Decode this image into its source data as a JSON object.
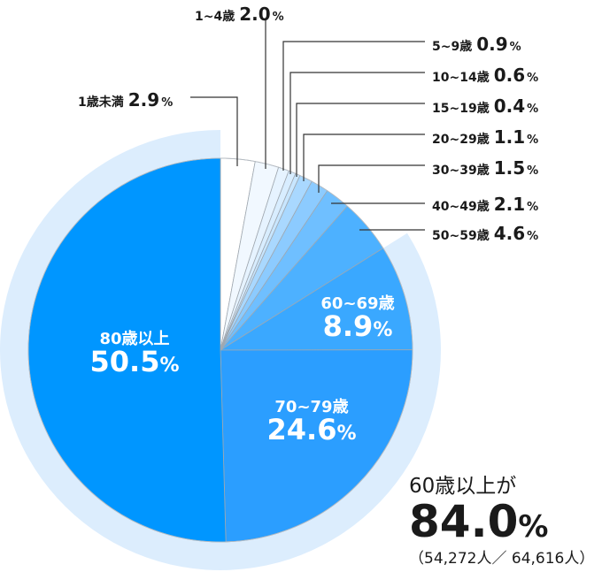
{
  "chart_data": {
    "type": "pie",
    "categories": [
      "1歳未満",
      "1~4歳",
      "5~9歳",
      "10~14歳",
      "15~19歳",
      "20~29歳",
      "30~39歳",
      "40~49歳",
      "50~59歳",
      "60~69歳",
      "70~79歳",
      "80歳以上"
    ],
    "values": [
      2.9,
      2.0,
      0.9,
      0.6,
      0.4,
      1.1,
      1.5,
      2.1,
      4.6,
      8.9,
      24.6,
      50.5
    ],
    "value_labels": [
      "2.9",
      "2.0",
      "0.9",
      "0.6",
      "0.4",
      "1.1",
      "1.5",
      "2.1",
      "4.6",
      "8.9",
      "24.6",
      "50.5"
    ],
    "unit": "%",
    "start": "top",
    "direction": "clockwise",
    "colors": [
      "#ffffff",
      "#f1f8ff",
      "#e6f3ff",
      "#d8edff",
      "#c8e6ff",
      "#a9d8ff",
      "#8ccbff",
      "#6fbfff",
      "#4db1ff",
      "#3aa8ff",
      "#2b9eff",
      "#0096ff"
    ],
    "highlight_ring": {
      "covers": [
        "60~69歳",
        "70~79歳",
        "80歳以上"
      ],
      "color": "#dcedfd"
    }
  },
  "summary": {
    "title": "60歳以上が",
    "value": "84.0",
    "unit": "%",
    "counts": "（54,272人／ 64,616人）"
  }
}
